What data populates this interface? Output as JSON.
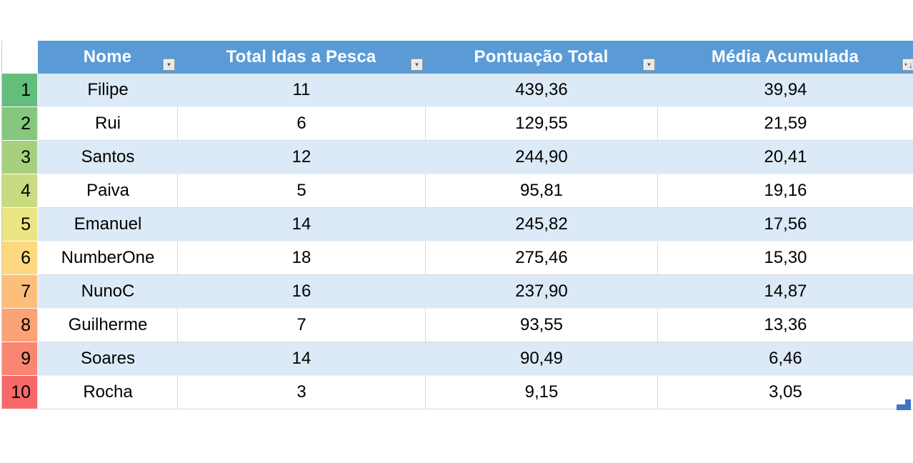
{
  "table": {
    "columns": [
      {
        "label": "Nome",
        "sorted": false
      },
      {
        "label": "Total Idas a Pesca",
        "sorted": false
      },
      {
        "label": "Pontuação Total",
        "sorted": false
      },
      {
        "label": "Média Acumulada",
        "sorted": true
      }
    ],
    "icons": {
      "filter_dropdown": "▼",
      "sort_descending": "↓"
    },
    "rows": [
      {
        "rank": "1",
        "rank_color": "#63BE7B",
        "name": "Filipe",
        "trips": "11",
        "points": "439,36",
        "average": "39,94"
      },
      {
        "rank": "2",
        "rank_color": "#84C77D",
        "name": "Rui",
        "trips": "6",
        "points": "129,55",
        "average": "21,59"
      },
      {
        "rank": "3",
        "rank_color": "#A6D07E",
        "name": "Santos",
        "trips": "12",
        "points": "244,90",
        "average": "20,41"
      },
      {
        "rank": "4",
        "rank_color": "#C9DB80",
        "name": "Paiva",
        "trips": "5",
        "points": "95,81",
        "average": "19,16"
      },
      {
        "rank": "5",
        "rank_color": "#EBE482",
        "name": "Emanuel",
        "trips": "14",
        "points": "245,82",
        "average": "17,56"
      },
      {
        "rank": "6",
        "rank_color": "#FDD880",
        "name": "NumberOne",
        "trips": "18",
        "points": "275,46",
        "average": "15,30"
      },
      {
        "rank": "7",
        "rank_color": "#FCBF7B",
        "name": "NunoC",
        "trips": "16",
        "points": "237,90",
        "average": "14,87"
      },
      {
        "rank": "8",
        "rank_color": "#FBA276",
        "name": "Guilherme",
        "trips": "7",
        "points": "93,55",
        "average": "13,36"
      },
      {
        "rank": "9",
        "rank_color": "#F98670",
        "name": "Soares",
        "trips": "14",
        "points": "90,49",
        "average": "6,46"
      },
      {
        "rank": "10",
        "rank_color": "#F8696B",
        "name": "Rocha",
        "trips": "3",
        "points": "9,15",
        "average": "3,05"
      }
    ],
    "colors": {
      "header_bg": "#5B9BD5",
      "band_row_bg": "#DCE9F6",
      "white_row_bg": "#FFFFFF",
      "grid_line": "#D9D9D9",
      "resize_handle": "#4472C4",
      "header_text": "#FFFFFF"
    }
  }
}
